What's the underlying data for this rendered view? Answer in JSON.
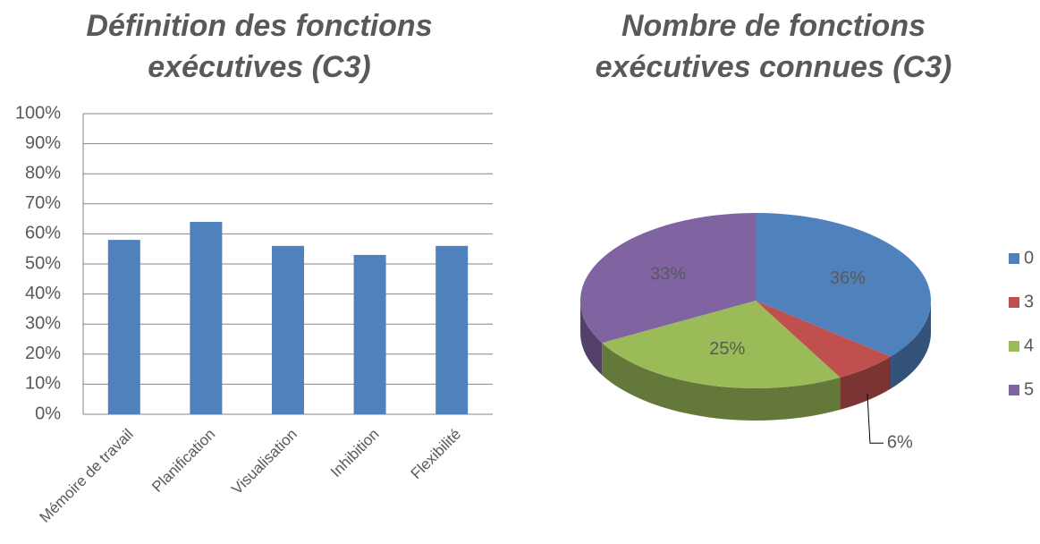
{
  "chart_data": [
    {
      "type": "bar",
      "title": "Définition des fonctions exécutives (C3)",
      "categories": [
        "Mémoire de travail",
        "Planification",
        "Visualisation",
        "Inhibition",
        "Flexibilité"
      ],
      "values": [
        58,
        64,
        56,
        53,
        56
      ],
      "color": "#4f81bd",
      "ylim": [
        0,
        100
      ],
      "yticks": [
        {
          "value": 0,
          "label": "0%"
        },
        {
          "value": 10,
          "label": "10%"
        },
        {
          "value": 20,
          "label": "20%"
        },
        {
          "value": 30,
          "label": "30%"
        },
        {
          "value": 40,
          "label": "40%"
        },
        {
          "value": 50,
          "label": "50%"
        },
        {
          "value": 60,
          "label": "60%"
        },
        {
          "value": 70,
          "label": "70%"
        },
        {
          "value": 80,
          "label": "80%"
        },
        {
          "value": 90,
          "label": "90%"
        },
        {
          "value": 100,
          "label": "100%"
        }
      ],
      "grid": true
    },
    {
      "type": "pie",
      "title": "Nombre de fonctions exécutives connues (C3)",
      "categories": [
        "0",
        "3",
        "4",
        "5"
      ],
      "values": [
        36,
        6,
        25,
        33
      ],
      "value_labels": [
        "36%",
        "6%",
        "25%",
        "33%"
      ],
      "colors": [
        "#4f81bd",
        "#c0504d",
        "#9bbb59",
        "#8064a2"
      ],
      "legend": "right"
    }
  ]
}
